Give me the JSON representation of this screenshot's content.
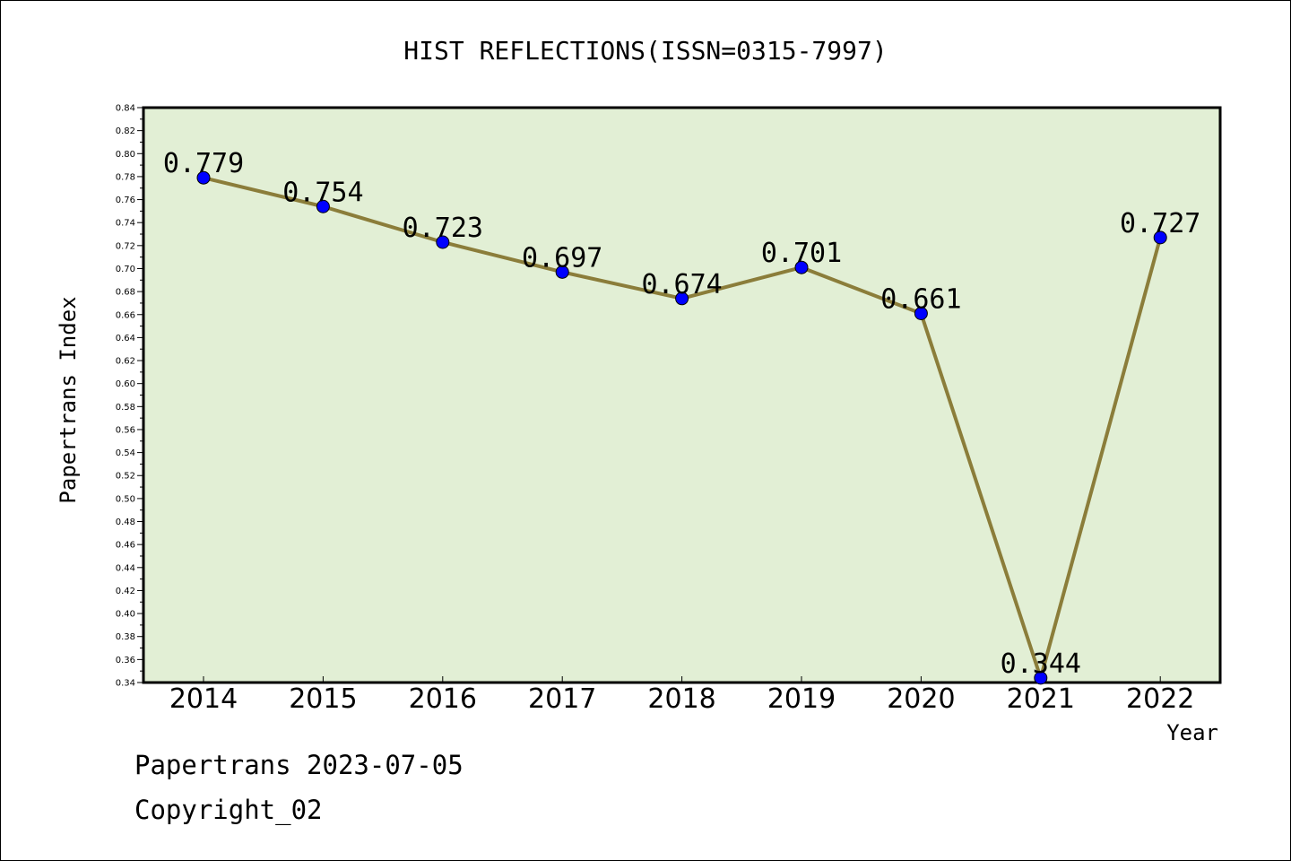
{
  "chart_data": {
    "type": "line",
    "title": "HIST REFLECTIONS(ISSN=0315-7997)",
    "xlabel": "Year",
    "ylabel": "Papertrans Index",
    "categories": [
      "2014",
      "2015",
      "2016",
      "2017",
      "2018",
      "2019",
      "2020",
      "2021",
      "2022"
    ],
    "values": [
      0.779,
      0.754,
      0.723,
      0.697,
      0.674,
      0.701,
      0.661,
      0.344,
      0.727
    ],
    "data_labels": [
      "0.779",
      "0.754",
      "0.723",
      "0.697",
      "0.674",
      "0.701",
      "0.661",
      "0.344",
      "0.727"
    ],
    "ylim": [
      0.34,
      0.84
    ],
    "yticks": [
      "0.34",
      "0.36",
      "0.38",
      "0.40",
      "0.42",
      "0.44",
      "0.46",
      "0.48",
      "0.50",
      "0.52",
      "0.54",
      "0.56",
      "0.58",
      "0.60",
      "0.62",
      "0.64",
      "0.66",
      "0.68",
      "0.70",
      "0.72",
      "0.74",
      "0.76",
      "0.78",
      "0.80",
      "0.82",
      "0.84"
    ],
    "grid": false,
    "colors": {
      "plot_background": "#e2efd5",
      "line": "#8b7d3a",
      "marker": "#0000ff",
      "axis": "#000000"
    }
  },
  "footer": {
    "line1": "Papertrans 2023-07-05",
    "line2": "Copyright_02"
  }
}
